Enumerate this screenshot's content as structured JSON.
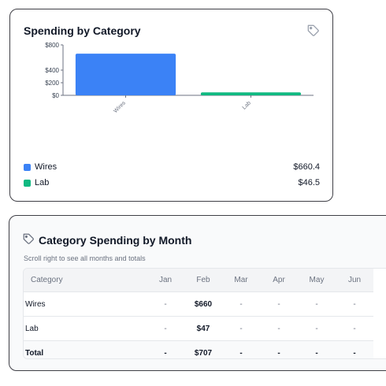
{
  "spending_card": {
    "title": "Spending by Category",
    "tag_icon": "tag-icon",
    "legend": [
      {
        "name": "Wires",
        "value": "$660.4",
        "color": "#3b82f6"
      },
      {
        "name": "Lab",
        "value": "$46.5",
        "color": "#10b981"
      }
    ]
  },
  "chart_data": {
    "type": "bar",
    "title": "Spending by Category",
    "categories": [
      "Wires",
      "Lab"
    ],
    "values": [
      660.4,
      46.5
    ],
    "colors": [
      "#3b82f6",
      "#10b981"
    ],
    "yticks": [
      "$800",
      "$400",
      "$200",
      "$0"
    ],
    "ytick_values": [
      800,
      400,
      200,
      0
    ],
    "ylim": [
      0,
      800
    ],
    "xlabel": "",
    "ylabel": "",
    "grid": false,
    "legend": "bottom"
  },
  "monthly_card": {
    "title": "Category Spending by Month",
    "subtitle": "Scroll right to see all months and totals",
    "tag_icon": "tag-icon",
    "columns": [
      "Category",
      "Jan",
      "Feb",
      "Mar",
      "Apr",
      "May",
      "Jun"
    ],
    "rows": [
      {
        "name": "Wires",
        "cells": [
          "-",
          "$660",
          "-",
          "-",
          "-",
          "-"
        ]
      },
      {
        "name": "Lab",
        "cells": [
          "-",
          "$47",
          "-",
          "-",
          "-",
          "-"
        ]
      }
    ],
    "total": {
      "name": "Total",
      "cells": [
        "-",
        "$707",
        "-",
        "-",
        "-",
        "-"
      ]
    }
  }
}
